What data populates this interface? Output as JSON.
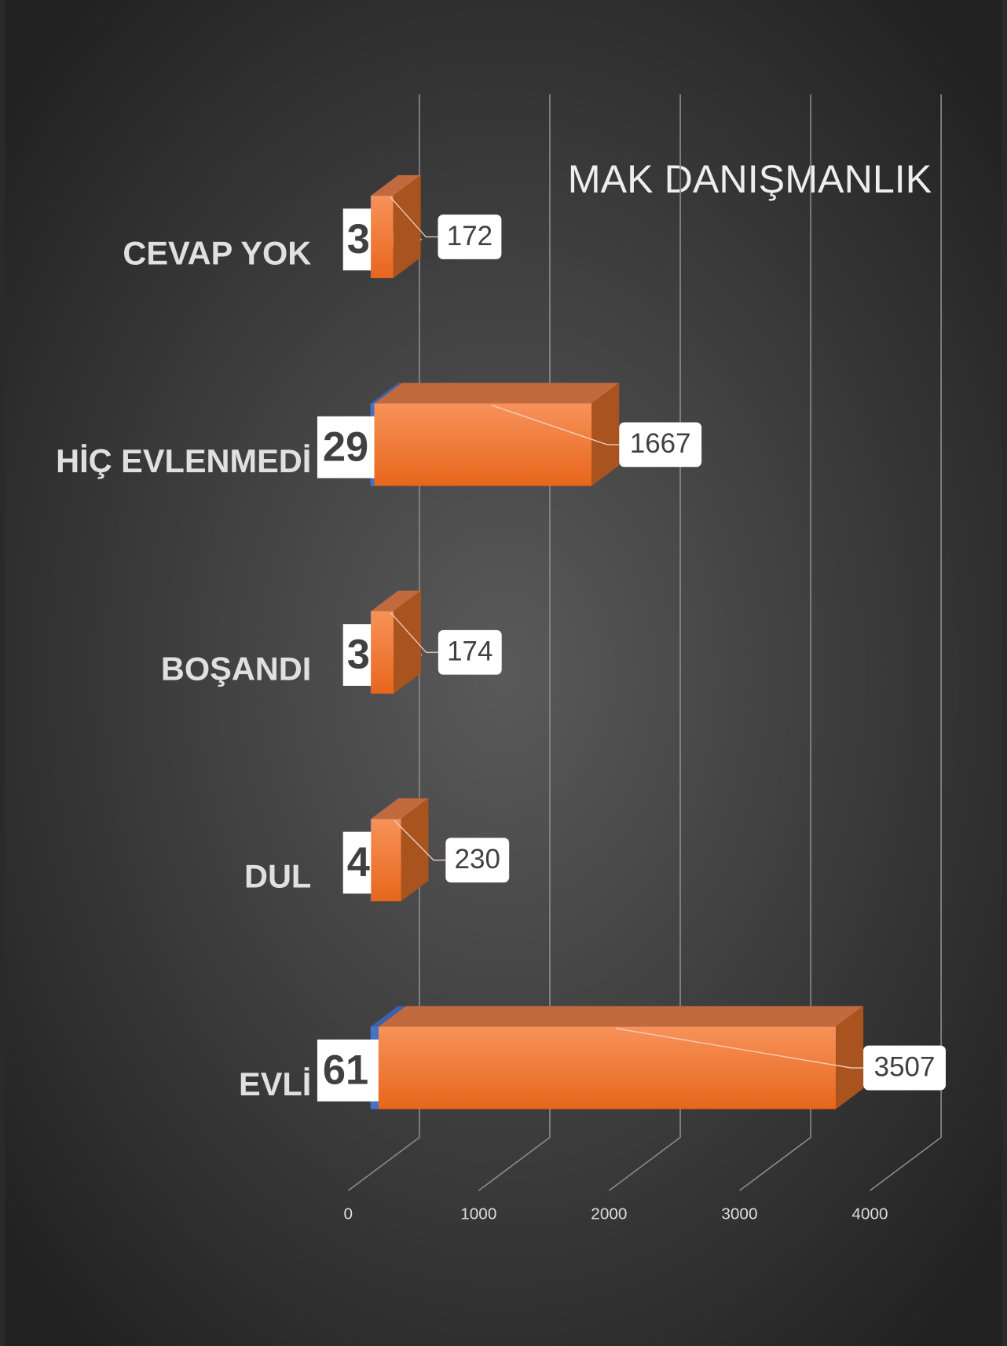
{
  "chart_data": {
    "type": "bar3d_horizontal_stacked",
    "title": "MAK DANIŞMANLIK",
    "categories": [
      "CEVAP YOK",
      "HİÇ EVLENMEDİ",
      "BOŞANDI",
      "DUL",
      "EVLİ"
    ],
    "series": [
      {
        "color": "#4472c4",
        "values": [
          3,
          29,
          3,
          4,
          61
        ]
      },
      {
        "color": "#ed7d31",
        "values": [
          172,
          1667,
          174,
          230,
          3507
        ]
      }
    ],
    "xlim": [
      0,
      4000
    ],
    "xticks": [
      0,
      1000,
      2000,
      3000,
      4000
    ],
    "grid": true
  }
}
